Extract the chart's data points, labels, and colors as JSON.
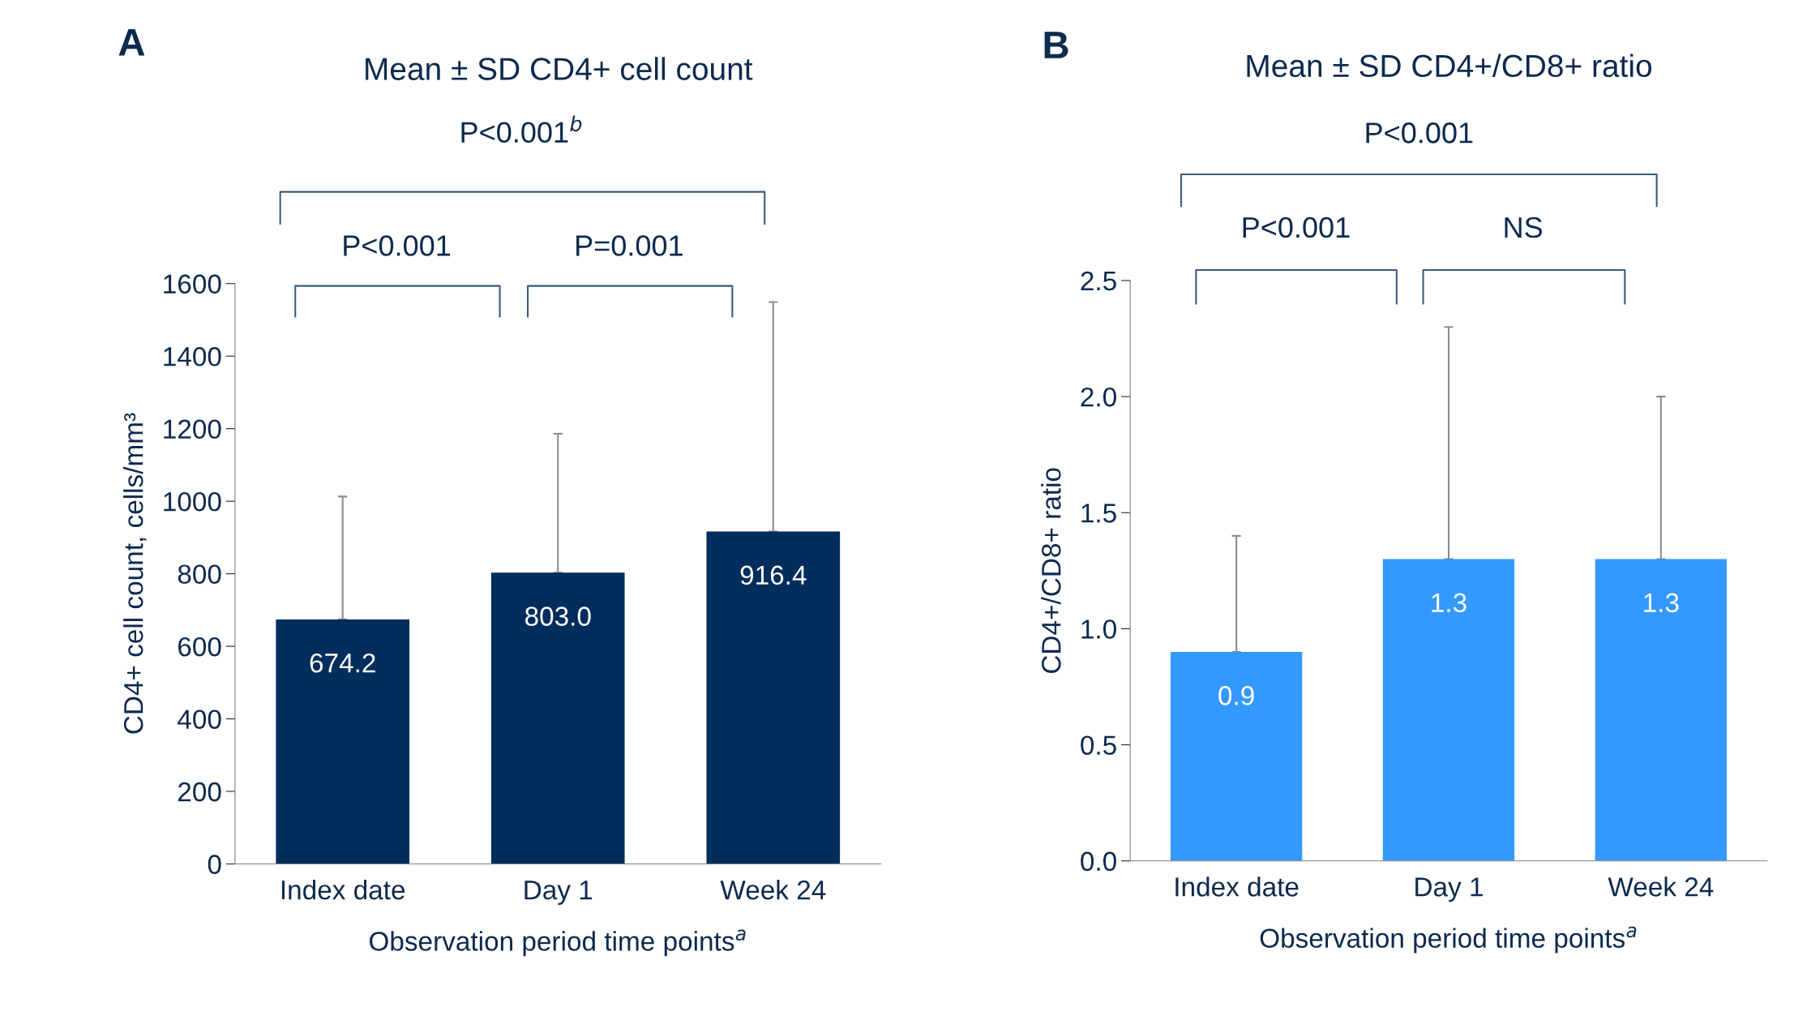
{
  "chart_data": [
    {
      "type": "bar",
      "title": "Mean ± SD CD4+ cell count",
      "xlabel": "Observation period time points$^{a}$",
      "ylabel": "CD4+ cell count, cells/mm³",
      "categories": [
        "Index date",
        "Day 1",
        "Week 24"
      ],
      "values": [
        674.2,
        803.0,
        916.4
      ],
      "color": "#002e5c",
      "errors": [
        [
          674.2,
          1013
        ],
        [
          803.0,
          1186
        ],
        [
          916.4,
          1549
        ]
      ],
      "value_labels": [
        "674.2",
        "803.0",
        "916.4"
      ],
      "ylim": [
        0,
        1600
      ],
      "yticks": [
        0,
        200,
        400,
        600,
        800,
        1000,
        1200,
        1400,
        1600
      ],
      "grid": false,
      "legend": false,
      "annotations": [
        "A",
        "P<0.001$^{b}$",
        "P<0.001",
        "P=0.001"
      ]
    },
    {
      "type": "bar",
      "title": "Mean ± SD CD4+/CD8+ ratio",
      "xlabel": "Observation period time points$^{a}$",
      "ylabel": "CD4+/CD8+ ratio",
      "categories": [
        "Index date",
        "Day 1",
        "Week 24"
      ],
      "values": [
        0.9,
        1.3,
        1.3
      ],
      "color": "#3399ff",
      "errors": [
        [
          0.9,
          1.4
        ],
        [
          1.3,
          2.3
        ],
        [
          1.3,
          2.0
        ]
      ],
      "value_labels": [
        "0.9",
        "1.3",
        "1.3"
      ],
      "ylim": [
        0,
        2.5
      ],
      "yticks": [
        {
          "value": 0,
          "label": "0.0"
        },
        0.5,
        {
          "value": 1,
          "label": "1.0"
        },
        1.5,
        {
          "value": 2,
          "label": "2.0"
        },
        2.5
      ],
      "grid": false,
      "legend": false,
      "annotations": [
        "B",
        "P<0.001",
        "P<0.001",
        "NS"
      ]
    }
  ]
}
